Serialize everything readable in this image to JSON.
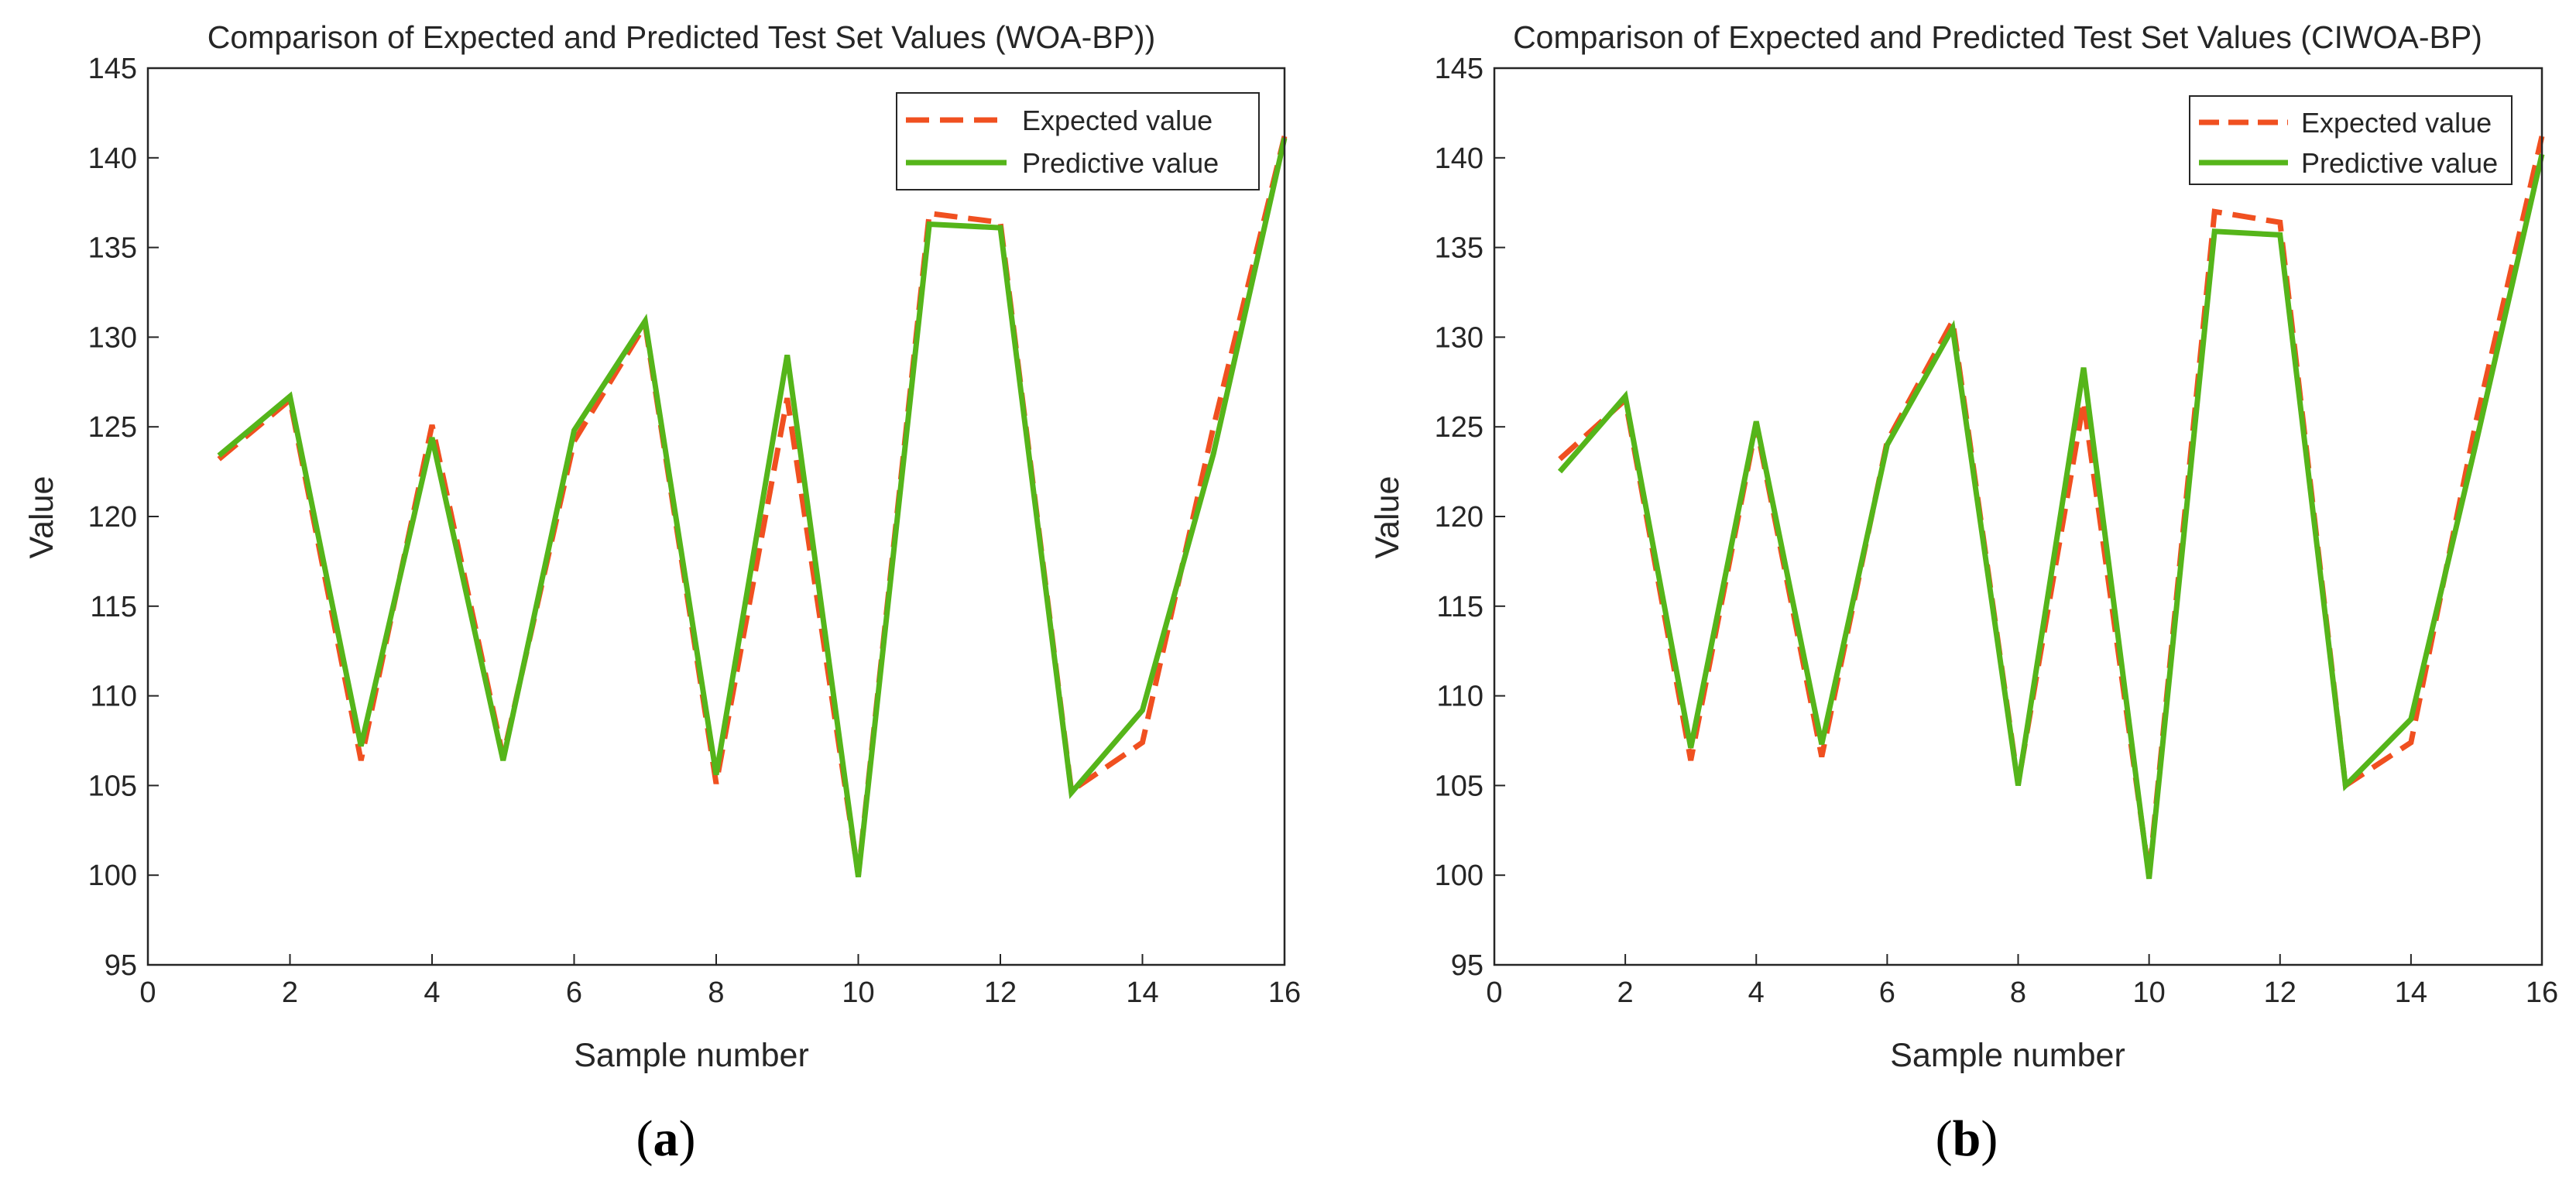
{
  "figure_labels": {
    "a": {
      "open": "(",
      "letter": "a",
      "close": ")"
    },
    "b": {
      "open": "(",
      "letter": "b",
      "close": ")"
    }
  },
  "colors": {
    "expected": "#F05020",
    "predicted": "#55B51A",
    "axis": "#262626"
  },
  "chart_data": [
    {
      "id": "a",
      "type": "line",
      "title": "Comparison of Expected and Predicted Test Set Values (WOA-BP))",
      "xlabel": "Sample number",
      "ylabel": "Value",
      "xlim": [
        0,
        16
      ],
      "ylim": [
        95,
        145
      ],
      "xticks": [
        0,
        2,
        4,
        6,
        8,
        10,
        12,
        14,
        16
      ],
      "yticks": [
        95,
        100,
        105,
        110,
        115,
        120,
        125,
        130,
        135,
        140,
        145
      ],
      "grid": false,
      "legend": "top-right",
      "x": [
        1,
        2,
        3,
        4,
        5,
        6,
        7,
        8,
        9,
        10,
        11,
        12,
        13,
        14,
        15,
        16
      ],
      "series": [
        {
          "name": "Expected value",
          "style": "dashed",
          "values": [
            123.2,
            126.5,
            106.4,
            125.1,
            106.6,
            124.2,
            130.7,
            105.1,
            126.6,
            100.0,
            136.9,
            136.4,
            104.7,
            107.4,
            125.0,
            141.2
          ]
        },
        {
          "name": "Predictive value",
          "style": "solid",
          "values": [
            123.4,
            126.7,
            107.2,
            124.4,
            106.4,
            124.8,
            130.9,
            105.6,
            129.0,
            99.9,
            136.3,
            136.1,
            104.6,
            109.2,
            123.5,
            141.1
          ]
        }
      ]
    },
    {
      "id": "b",
      "type": "line",
      "title": "Comparison of Expected and Predicted Test Set Values (CIWOA-BP)",
      "xlabel": "Sample number",
      "ylabel": "Value",
      "xlim": [
        0,
        16
      ],
      "ylim": [
        95,
        145
      ],
      "xticks": [
        0,
        2,
        4,
        6,
        8,
        10,
        12,
        14,
        16
      ],
      "yticks": [
        95,
        100,
        105,
        110,
        115,
        120,
        125,
        130,
        135,
        140,
        145
      ],
      "grid": false,
      "legend": "top-right",
      "x": [
        1,
        2,
        3,
        4,
        5,
        6,
        7,
        8,
        9,
        10,
        11,
        12,
        13,
        14,
        15,
        16
      ],
      "series": [
        {
          "name": "Expected value",
          "style": "dashed",
          "values": [
            123.2,
            126.5,
            106.4,
            125.1,
            106.6,
            124.2,
            130.9,
            105.1,
            126.4,
            100.0,
            137.0,
            136.4,
            105.0,
            107.4,
            125.4,
            141.2
          ]
        },
        {
          "name": "Predictive value",
          "style": "solid",
          "values": [
            122.5,
            126.7,
            107.1,
            125.3,
            107.3,
            124.0,
            130.5,
            105.0,
            128.3,
            99.8,
            135.9,
            135.7,
            105.0,
            108.7,
            124.2,
            140.2
          ]
        }
      ]
    }
  ]
}
